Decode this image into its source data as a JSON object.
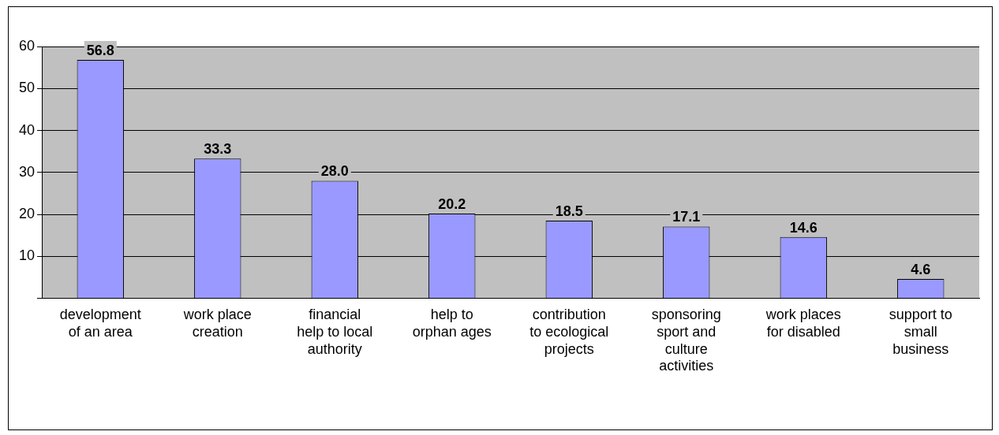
{
  "chart_data": {
    "type": "bar",
    "categories": [
      "development of an area",
      "work place creation",
      "financial help to local authority",
      "help to orphan ages",
      "contribution to ecological projects",
      "sponsoring sport and culture activities",
      "work places for disabled",
      "support to small business"
    ],
    "values": [
      56.8,
      33.3,
      28.0,
      20.2,
      18.5,
      17.1,
      14.6,
      4.6
    ],
    "value_labels": [
      "56.8",
      "33.3",
      "28.0",
      "20.2",
      "18.5",
      "17.1",
      "14.6",
      "4.6"
    ],
    "color": "#9999ff",
    "ylim": [
      0,
      60
    ],
    "yticks": [
      {
        "value": 0,
        "label": null
      },
      10,
      20,
      30,
      40,
      50,
      60
    ],
    "grid": "y",
    "legend": false
  }
}
